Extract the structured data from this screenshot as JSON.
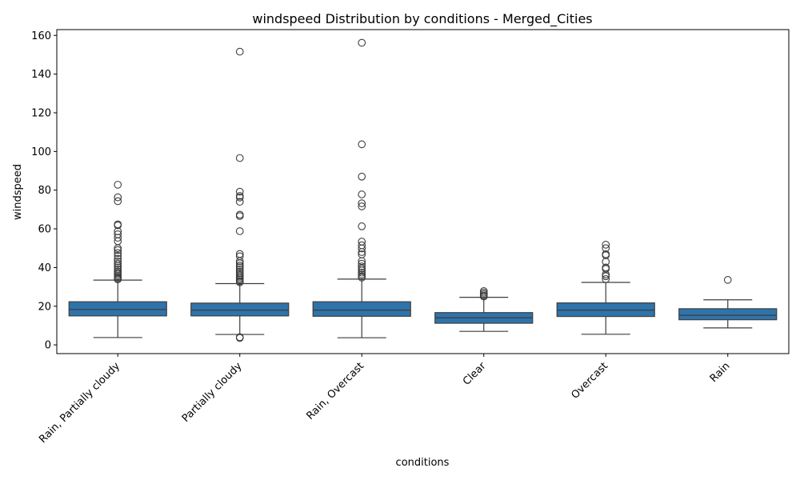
{
  "chart_data": {
    "type": "box",
    "title": "windspeed Distribution by conditions - Merged_Cities",
    "xlabel": "conditions",
    "ylabel": "windspeed",
    "ylim": [
      -4.5,
      163
    ],
    "yticks": [
      0,
      20,
      40,
      60,
      80,
      100,
      120,
      140,
      160
    ],
    "grid": false,
    "box_color": "#2f73ab",
    "line_color": "#3d3d3d",
    "categories": [
      "Rain, Partially cloudy",
      "Partially cloudy",
      "Rain, Overcast",
      "Clear",
      "Overcast",
      "Rain"
    ],
    "boxes": [
      {
        "category": "Rain, Partially cloudy",
        "whisker_low": 3.8,
        "q1": 15.0,
        "median": 18.3,
        "q3": 22.3,
        "whisker_high": 33.5,
        "outliers": [
          82.8,
          76.3,
          74.3,
          62.3,
          61.8,
          58.7,
          57.2,
          55.4,
          53.6,
          50.0,
          49.0,
          47.5,
          46.0,
          44.5,
          43.2,
          42.0,
          41.0,
          40.0,
          39.0,
          38.0,
          37.2,
          36.5,
          35.7,
          35.0,
          34.4,
          33.9
        ]
      },
      {
        "category": "Partially cloudy",
        "whisker_low": 5.4,
        "q1": 15.0,
        "median": 18.0,
        "q3": 21.6,
        "whisker_high": 31.7,
        "outliers": [
          151.6,
          96.6,
          79.2,
          77.0,
          76.2,
          74.0,
          67.3,
          66.6,
          58.8,
          47.0,
          45.8,
          43.3,
          42.2,
          41.0,
          40.1,
          39.0,
          38.0,
          37.1,
          36.2,
          35.3,
          34.5,
          33.8,
          33.0,
          32.4,
          3.6,
          4.0
        ]
      },
      {
        "category": "Rain, Overcast",
        "whisker_low": 3.7,
        "q1": 14.8,
        "median": 18.0,
        "q3": 22.3,
        "whisker_high": 34.0,
        "outliers": [
          156.2,
          103.7,
          87.0,
          77.8,
          73.2,
          71.6,
          61.3,
          53.4,
          51.5,
          49.9,
          48.0,
          46.8,
          43.3,
          42.0,
          40.6,
          39.5,
          38.5,
          37.4,
          36.4,
          35.5,
          34.8
        ]
      },
      {
        "category": "Clear",
        "whisker_low": 7.0,
        "q1": 11.2,
        "median": 14.0,
        "q3": 16.7,
        "whisker_high": 24.6,
        "outliers": [
          27.8,
          27.0,
          26.2,
          25.5,
          25.0
        ]
      },
      {
        "category": "Overcast",
        "whisker_low": 5.5,
        "q1": 14.7,
        "median": 18.0,
        "q3": 21.7,
        "whisker_high": 32.3,
        "outliers": [
          51.8,
          50.0,
          46.9,
          46.3,
          43.0,
          40.0,
          39.3,
          36.4,
          35.5,
          34.0
        ]
      },
      {
        "category": "Rain",
        "whisker_low": 8.8,
        "q1": 13.0,
        "median": 15.3,
        "q3": 18.7,
        "whisker_high": 23.3,
        "outliers": [
          33.6
        ]
      }
    ]
  }
}
